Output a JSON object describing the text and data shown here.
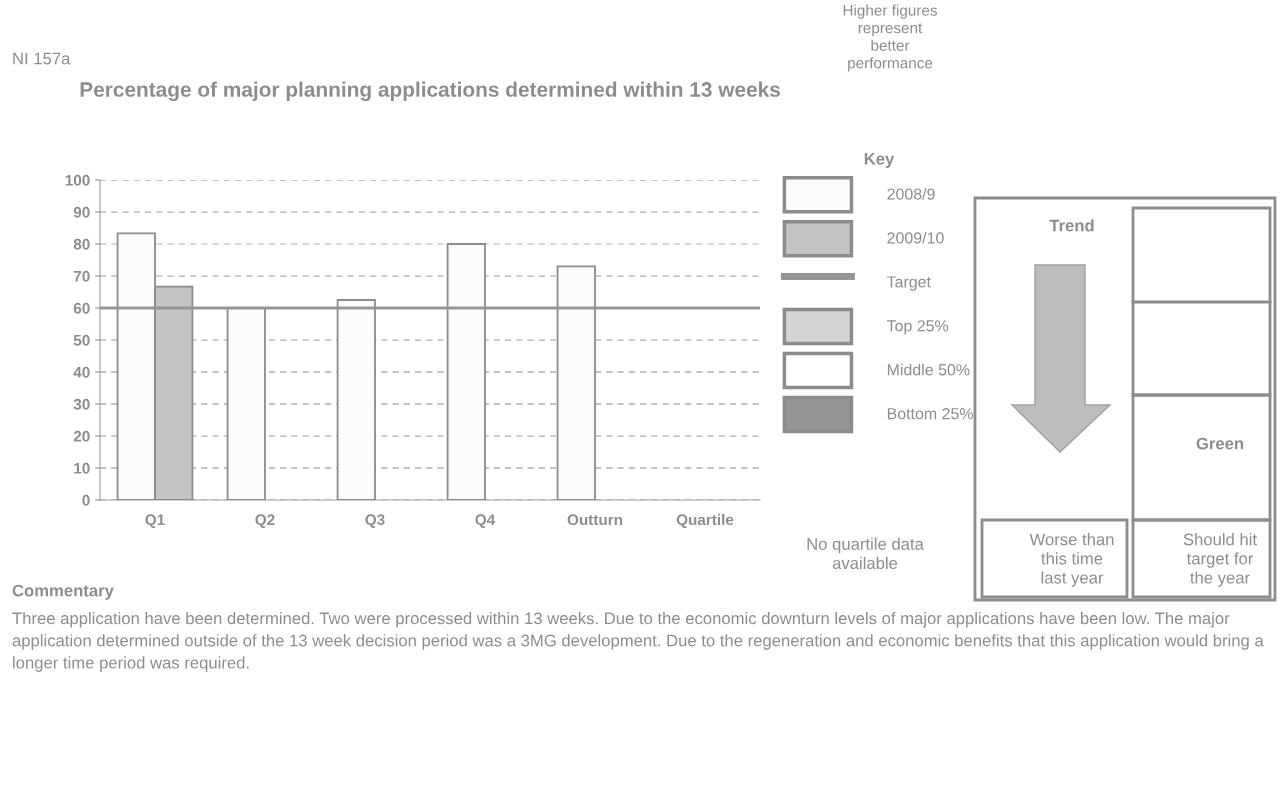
{
  "chart_data": {
    "type": "bar",
    "title": "Percentage of major planning applications determined within 13 weeks",
    "categories": [
      "Q1",
      "Q2",
      "Q3",
      "Q4",
      "Outturn",
      "Quartile"
    ],
    "series": [
      {
        "name": "2008/9",
        "color": "#fcfcfc",
        "values": [
          83.3,
          60,
          62.5,
          80,
          73,
          null
        ]
      },
      {
        "name": "2009/10",
        "color": "#c4c4c4",
        "values": [
          66.7,
          null,
          null,
          null,
          null,
          null
        ]
      },
      {
        "name": "Top 25%",
        "color": "#d4d4d4",
        "values": [
          null,
          null,
          null,
          null,
          null,
          null
        ]
      },
      {
        "name": "Middle 50%",
        "color": "#ffffff",
        "values": [
          null,
          null,
          null,
          null,
          null,
          null
        ]
      },
      {
        "name": "Bottom 25%",
        "color": "#969696",
        "values": [
          null,
          null,
          null,
          null,
          null,
          null
        ]
      }
    ],
    "ylim": [
      0,
      100
    ],
    "yticks": [
      0,
      10,
      20,
      30,
      40,
      50,
      60,
      70,
      80,
      90,
      100
    ],
    "grid": "y",
    "ref_lines": [
      {
        "axis": "y",
        "value": 60,
        "label": "Target",
        "color": "#969696",
        "line_style": "solid"
      }
    ],
    "legend": "right",
    "legend_title": "Key",
    "annotations": [
      "NI 157a",
      "Higher figures represent better performance",
      "No quartile data available",
      "Trend",
      "Green",
      "Worse than this time last year",
      "Should hit target for the year",
      "Commentary",
      "Three application have been determined. Two were processed within 13 weeks. Due to the economic downturn levels of major applications have been low. The major application determined outside of the 13 week decision period was a 3MG development. Due to the regeneration and economic benefits that this application would bring a longer time period was required."
    ]
  }
}
